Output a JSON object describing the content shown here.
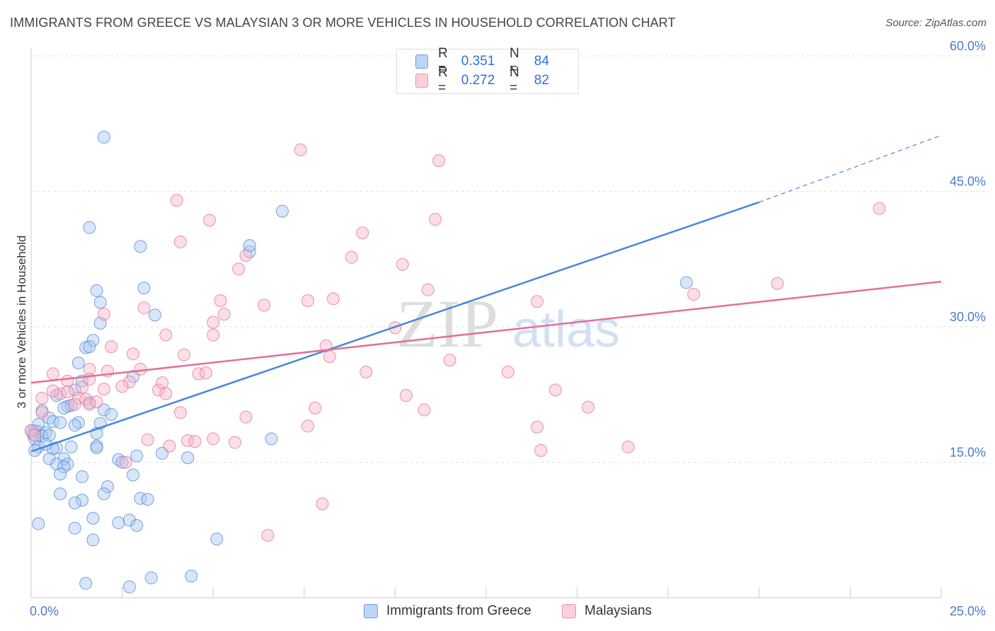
{
  "title": "IMMIGRANTS FROM GREECE VS MALAYSIAN 3 OR MORE VEHICLES IN HOUSEHOLD CORRELATION CHART",
  "source": "Source: ZipAtlas.com",
  "watermark": {
    "zip": "ZIP",
    "atlas": "atlas"
  },
  "legend_top": {
    "r_label": "R =",
    "n_label": "N =",
    "rows": [
      {
        "r": "0.351",
        "n": "84",
        "color": "#a8c8f0"
      },
      {
        "r": "0.272",
        "n": "82",
        "color": "#f7b6c8"
      }
    ]
  },
  "chart_data": {
    "type": "scatter",
    "title": "IMMIGRANTS FROM GREECE VS MALAYSIAN 3 OR MORE VEHICLES IN HOUSEHOLD CORRELATION CHART",
    "xlabel": "",
    "ylabel": "3 or more Vehicles in Household",
    "xlim": [
      0,
      25
    ],
    "ylim": [
      0,
      60
    ],
    "x_tick_labels": [
      "0.0%",
      "25.0%"
    ],
    "y_ticks": [
      15,
      30,
      45,
      60
    ],
    "y_tick_labels": [
      "15.0%",
      "30.0%",
      "45.0%",
      "60.0%"
    ],
    "legend": [
      "Immigrants from Greece",
      "Malaysians"
    ],
    "series": [
      {
        "name": "Immigrants from Greece",
        "color": "#4a86d8",
        "fill": "#a8c8f0",
        "trend": {
          "x": [
            0,
            20
          ],
          "y": [
            16.2,
            43.8
          ],
          "dash_to": [
            25,
            51.2
          ]
        },
        "points": [
          [
            2.0,
            51.0
          ],
          [
            6.9,
            42.8
          ],
          [
            1.6,
            41.0
          ],
          [
            3.0,
            38.9
          ],
          [
            6.0,
            38.3
          ],
          [
            6.0,
            39.0
          ],
          [
            3.1,
            34.3
          ],
          [
            1.8,
            34.0
          ],
          [
            1.9,
            32.7
          ],
          [
            3.4,
            31.3
          ],
          [
            1.9,
            30.4
          ],
          [
            1.7,
            28.5
          ],
          [
            1.5,
            27.7
          ],
          [
            1.6,
            27.8
          ],
          [
            1.3,
            26.0
          ],
          [
            1.4,
            24.0
          ],
          [
            2.8,
            24.5
          ],
          [
            1.2,
            23.0
          ],
          [
            0.7,
            22.4
          ],
          [
            1.6,
            21.6
          ],
          [
            1.0,
            21.2
          ],
          [
            1.1,
            21.3
          ],
          [
            0.9,
            21.0
          ],
          [
            0.3,
            20.7
          ],
          [
            2.0,
            20.8
          ],
          [
            0.5,
            19.9
          ],
          [
            1.9,
            19.3
          ],
          [
            2.2,
            20.3
          ],
          [
            0.6,
            19.5
          ],
          [
            0.8,
            19.4
          ],
          [
            1.3,
            19.4
          ],
          [
            1.2,
            19.1
          ],
          [
            0.2,
            18.4
          ],
          [
            0.4,
            18.3
          ],
          [
            0.1,
            18.5
          ],
          [
            0.05,
            18.1
          ],
          [
            0.3,
            17.9
          ],
          [
            0.5,
            18.0
          ],
          [
            0.1,
            17.6
          ],
          [
            0.2,
            16.7
          ],
          [
            0.7,
            16.6
          ],
          [
            0.1,
            16.3
          ],
          [
            0.0,
            18.5
          ],
          [
            0.2,
            19.2
          ],
          [
            1.8,
            18.2
          ],
          [
            1.8,
            16.8
          ],
          [
            0.6,
            16.5
          ],
          [
            1.1,
            16.7
          ],
          [
            1.8,
            16.6
          ],
          [
            0.5,
            15.4
          ],
          [
            0.9,
            15.4
          ],
          [
            2.9,
            15.7
          ],
          [
            2.4,
            15.3
          ],
          [
            0.7,
            14.8
          ],
          [
            1.0,
            14.8
          ],
          [
            0.9,
            14.5
          ],
          [
            2.5,
            15.0
          ],
          [
            3.6,
            16.0
          ],
          [
            4.3,
            15.5
          ],
          [
            1.4,
            13.4
          ],
          [
            0.8,
            13.7
          ],
          [
            2.8,
            13.6
          ],
          [
            2.1,
            12.3
          ],
          [
            2.0,
            11.5
          ],
          [
            0.8,
            11.5
          ],
          [
            3.0,
            11.0
          ],
          [
            3.2,
            10.9
          ],
          [
            1.4,
            10.8
          ],
          [
            1.2,
            10.5
          ],
          [
            1.7,
            8.8
          ],
          [
            2.4,
            8.3
          ],
          [
            2.7,
            8.6
          ],
          [
            2.9,
            8.0
          ],
          [
            0.2,
            8.2
          ],
          [
            1.2,
            7.7
          ],
          [
            1.7,
            6.4
          ],
          [
            5.1,
            6.5
          ],
          [
            6.6,
            17.6
          ],
          [
            18.0,
            34.9
          ],
          [
            1.5,
            1.6
          ],
          [
            2.7,
            1.2
          ],
          [
            3.3,
            2.2
          ],
          [
            4.4,
            2.4
          ],
          [
            0.4,
            17.0
          ]
        ]
      },
      {
        "name": "Malaysians",
        "color": "#e36f9a",
        "fill": "#f7b6c8",
        "trend": {
          "x": [
            0,
            25
          ],
          "y": [
            23.8,
            35.0
          ]
        },
        "points": [
          [
            7.4,
            49.6
          ],
          [
            11.2,
            48.4
          ],
          [
            4.0,
            44.0
          ],
          [
            4.9,
            41.8
          ],
          [
            11.1,
            41.9
          ],
          [
            23.3,
            43.1
          ],
          [
            9.1,
            40.4
          ],
          [
            4.1,
            39.4
          ],
          [
            5.9,
            37.9
          ],
          [
            8.8,
            37.7
          ],
          [
            10.2,
            36.9
          ],
          [
            5.7,
            36.4
          ],
          [
            20.5,
            34.8
          ],
          [
            10.9,
            34.1
          ],
          [
            18.2,
            33.6
          ],
          [
            7.6,
            32.9
          ],
          [
            8.3,
            33.1
          ],
          [
            5.2,
            32.9
          ],
          [
            6.4,
            32.4
          ],
          [
            3.1,
            32.1
          ],
          [
            13.9,
            32.8
          ],
          [
            2.0,
            31.4
          ],
          [
            5.3,
            31.4
          ],
          [
            5.0,
            30.5
          ],
          [
            10.0,
            29.9
          ],
          [
            3.7,
            29.1
          ],
          [
            5.0,
            29.1
          ],
          [
            2.2,
            27.8
          ],
          [
            8.1,
            27.9
          ],
          [
            4.2,
            26.9
          ],
          [
            2.8,
            27.0
          ],
          [
            8.2,
            26.7
          ],
          [
            11.5,
            26.3
          ],
          [
            1.6,
            25.3
          ],
          [
            2.1,
            25.1
          ],
          [
            3.0,
            25.3
          ],
          [
            9.2,
            25.0
          ],
          [
            13.1,
            25.0
          ],
          [
            0.6,
            24.8
          ],
          [
            4.6,
            24.8
          ],
          [
            4.8,
            24.9
          ],
          [
            1.0,
            24.0
          ],
          [
            2.7,
            23.9
          ],
          [
            1.6,
            24.2
          ],
          [
            1.4,
            23.3
          ],
          [
            2.0,
            23.1
          ],
          [
            2.5,
            23.4
          ],
          [
            0.8,
            22.6
          ],
          [
            1.3,
            22.1
          ],
          [
            1.5,
            22.0
          ],
          [
            3.5,
            23.0
          ],
          [
            3.6,
            23.8
          ],
          [
            10.3,
            22.4
          ],
          [
            14.4,
            23.0
          ],
          [
            0.3,
            22.1
          ],
          [
            0.6,
            22.9
          ],
          [
            1.0,
            22.8
          ],
          [
            3.7,
            22.6
          ],
          [
            1.6,
            21.4
          ],
          [
            1.8,
            21.7
          ],
          [
            1.2,
            21.4
          ],
          [
            7.8,
            21.0
          ],
          [
            10.8,
            20.8
          ],
          [
            15.3,
            21.1
          ],
          [
            4.1,
            20.5
          ],
          [
            5.9,
            20.0
          ],
          [
            7.6,
            19.0
          ],
          [
            13.9,
            18.9
          ],
          [
            0.0,
            18.5
          ],
          [
            3.2,
            17.5
          ],
          [
            4.3,
            17.4
          ],
          [
            5.0,
            17.6
          ],
          [
            4.5,
            17.3
          ],
          [
            5.6,
            17.2
          ],
          [
            3.8,
            16.8
          ],
          [
            14.0,
            16.3
          ],
          [
            16.4,
            16.7
          ],
          [
            2.6,
            15.0
          ],
          [
            8.0,
            10.4
          ],
          [
            6.5,
            6.9
          ],
          [
            0.1,
            18.0
          ],
          [
            0.3,
            20.5
          ]
        ]
      }
    ]
  }
}
